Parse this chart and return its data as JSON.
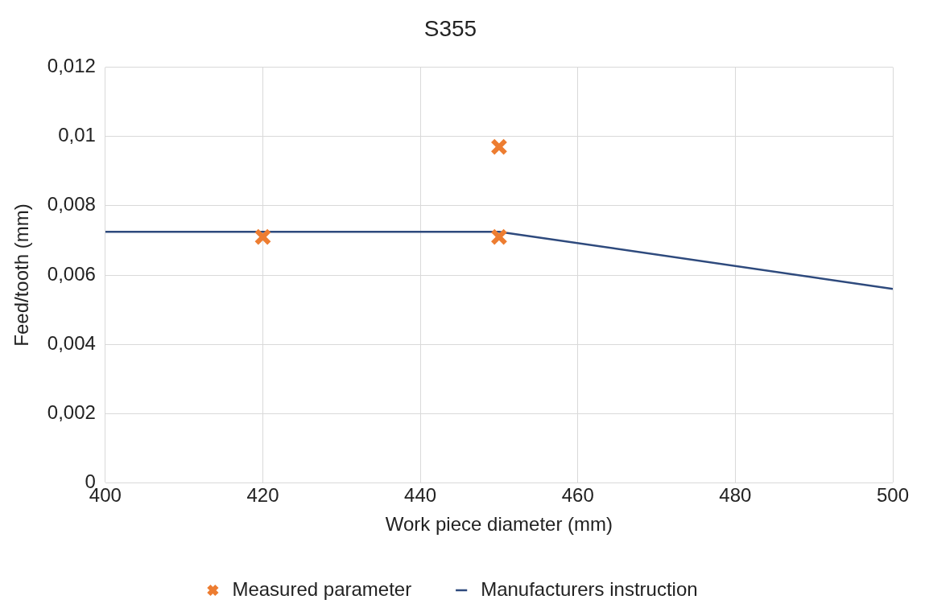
{
  "chart_data": {
    "type": "scatter",
    "title": "S355",
    "xlabel": "Work piece diameter (mm)",
    "ylabel": "Feed/tooth (mm)",
    "xlim": [
      400,
      500
    ],
    "xticks": [
      400,
      420,
      440,
      460,
      480,
      500
    ],
    "ylim": [
      0,
      0.012
    ],
    "yticks": [
      0,
      {
        "value": 0.002,
        "label": "0,002"
      },
      {
        "value": 0.004,
        "label": "0,004"
      },
      {
        "value": 0.006,
        "label": "0,006"
      },
      {
        "value": 0.008,
        "label": "0,008"
      },
      {
        "value": 0.01,
        "label": "0,01"
      },
      {
        "value": 0.012,
        "label": "0,012"
      }
    ],
    "grid": true,
    "legend": "bottom",
    "series": [
      {
        "name": "Measured parameter",
        "type": "scatter",
        "color": "#ed7d31",
        "marker": "cross",
        "x": [
          420,
          450,
          450
        ],
        "values": [
          0.0071,
          0.0071,
          0.0097
        ]
      },
      {
        "name": "Manufacturers instruction",
        "type": "line",
        "color": "#2e4a7d",
        "marker": "none",
        "line_style": "solid",
        "x": [
          400,
          450,
          500
        ],
        "values": [
          0.00725,
          0.00725,
          0.0056
        ]
      }
    ]
  }
}
